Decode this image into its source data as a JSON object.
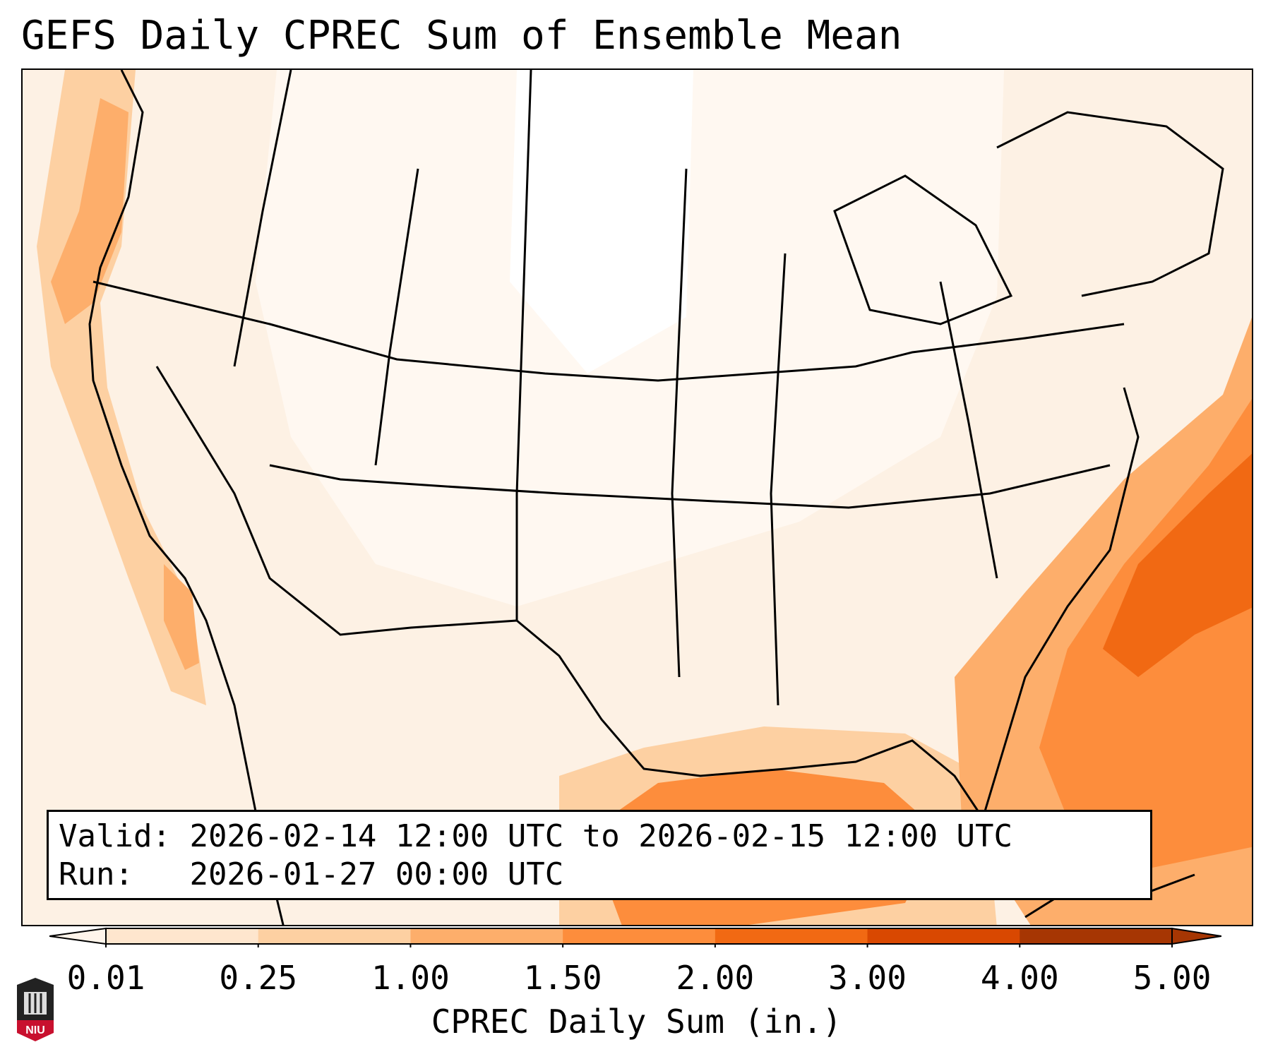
{
  "title": "GEFS Daily CPREC Sum of Ensemble Mean",
  "info": {
    "valid_label": "Valid:",
    "valid_value": "2026-02-14 12:00 UTC to 2026-02-15 12:00 UTC",
    "run_label": "Run:",
    "run_value": "2026-01-27 00:00 UTC"
  },
  "colorbar": {
    "label": "CPREC Daily Sum (in.)",
    "ticks": [
      "0.01",
      "0.25",
      "1.00",
      "1.50",
      "2.00",
      "3.00",
      "4.00",
      "5.00"
    ],
    "colors": [
      "#fff5eb",
      "#fee6ce",
      "#fdd0a2",
      "#fdae6b",
      "#fd8d3c",
      "#f16913",
      "#d94801",
      "#a63603"
    ]
  },
  "logo": {
    "text": "NIU",
    "color": "#c8102e"
  }
}
